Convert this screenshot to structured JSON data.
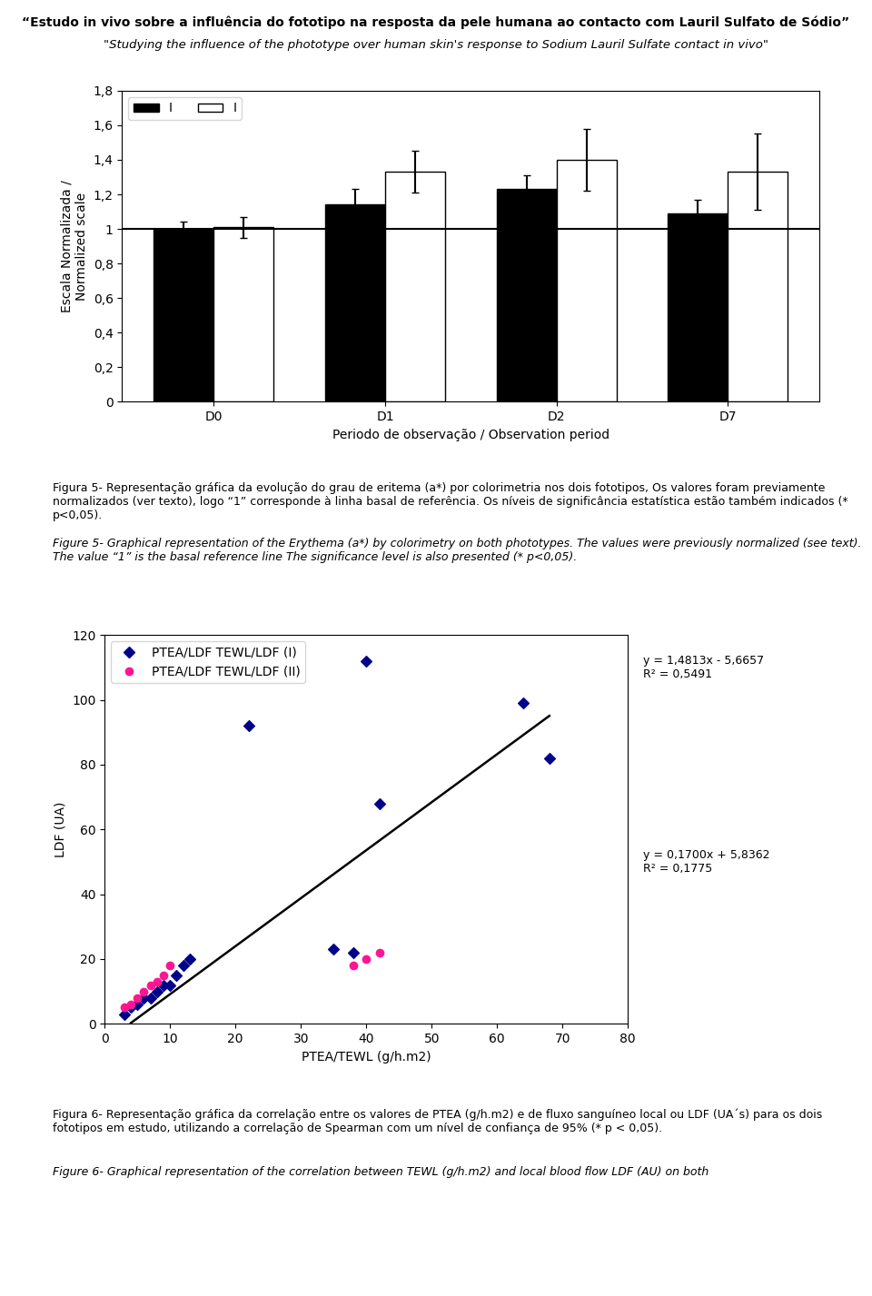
{
  "chart_data": [
    {
      "type": "bar",
      "title": "“Estudo in vivo sobre a influência do fototipo na resposta da pele humana ao contacto com Lauril Sulfato de Sódio”",
      "subtitle": "\"Studying the influence of the phototype over human skin's response to Sodium Lauril Sulfate contact in vivo\"",
      "categories": [
        "D0",
        "D1",
        "D2",
        "D7"
      ],
      "series": [
        {
          "name": "I",
          "color": "#000000",
          "values": [
            1.0,
            1.14,
            1.23,
            1.09
          ],
          "errors": [
            0.04,
            0.09,
            0.08,
            0.08
          ]
        },
        {
          "name": "I",
          "color": "#ffffff",
          "values": [
            1.01,
            1.33,
            1.4,
            1.33
          ],
          "errors": [
            0.06,
            0.12,
            0.18,
            0.22
          ]
        }
      ],
      "xlabel": "Periodo de observação / Observation period",
      "ylabel": "Escala Normalizada /\nNormalized scale",
      "ylim": [
        0,
        1.8
      ],
      "yticks": [
        0,
        {
          "value": 0.2,
          "label": "0,2"
        },
        {
          "value": 0.4,
          "label": "0,4"
        },
        {
          "value": 0.6,
          "label": "0,6"
        },
        {
          "value": 0.8,
          "label": "0,8"
        },
        1,
        {
          "value": 1.2,
          "label": "1,2"
        },
        {
          "value": 1.4,
          "label": "1,4"
        },
        {
          "value": 1.6,
          "label": "1,6"
        },
        {
          "value": 1.8,
          "label": "1,8"
        }
      ],
      "reference_line": 1.0,
      "legend": "upper left",
      "caption": [
        "Figura 5- Representação gráfica da evolução do grau de eritema (a*) por colorimetria nos dois fototipos, Os valores foram previamente normalizados (ver texto), logo “1” corresponde à linha basal de referência. Os níveis de significância estatística estão também indicados (* p<0,05).",
        "Figure 5- Graphical representation of the Erythema (a*) by colorimetry on both phototypes. The values were previously normalized (see text). The value “1” is the basal reference line The significance level is also presented (* p<0,05)."
      ]
    },
    {
      "type": "scatter",
      "xlabel": "PTEA/TEWL (g/h.m2)",
      "ylabel": "LDF (UA)",
      "xlim": [
        0,
        80
      ],
      "ylim": [
        0,
        120
      ],
      "xticks": [
        0,
        10,
        20,
        30,
        40,
        50,
        60,
        70,
        80
      ],
      "yticks": [
        0,
        20,
        40,
        60,
        80,
        100,
        120
      ],
      "series": [
        {
          "name": "PTEA/LDF TEWL/LDF (I)",
          "color": "#00008B",
          "marker": "diamond",
          "x": [
            3,
            4,
            5,
            6,
            7,
            8,
            9,
            10,
            11,
            12,
            13,
            22,
            35,
            38,
            40,
            42,
            64,
            68
          ],
          "values": [
            3,
            5,
            6,
            8,
            8,
            10,
            12,
            12,
            15,
            18,
            20,
            92,
            23,
            22,
            112,
            68,
            99,
            82
          ]
        },
        {
          "name": "PTEA/LDF TEWL/LDF (II)",
          "color": "#FF1493",
          "marker": "circle",
          "x": [
            3,
            4,
            5,
            6,
            7,
            8,
            9,
            10,
            38,
            40,
            42
          ],
          "values": [
            5,
            6,
            8,
            10,
            12,
            13,
            15,
            18,
            18,
            20,
            22
          ]
        },
        {
          "type": "line",
          "color": "#000000",
          "x": [
            4,
            68
          ],
          "values": [
            0.2595,
            95.0627
          ]
        }
      ],
      "annotations": [
        "y = 1,4813x - 5,6657\nR² = 0,5491",
        "y = 0,1700x + 5,8362\nR² = 0,1775"
      ],
      "legend": "upper left",
      "caption": [
        "Figura 6- Representação gráfica da correlação entre os valores de PTEA (g/h.m2) e de fluxo sanguíneo local ou LDF (UA´s) para os dois fototipos em estudo, utilizando a correlação de Spearman com um nível de confiança de 95% (* p < 0,05).",
        "Figure 6- Graphical representation of the correlation between TEWL (g/h.m2) and local blood flow LDF (AU) on both"
      ]
    }
  ]
}
